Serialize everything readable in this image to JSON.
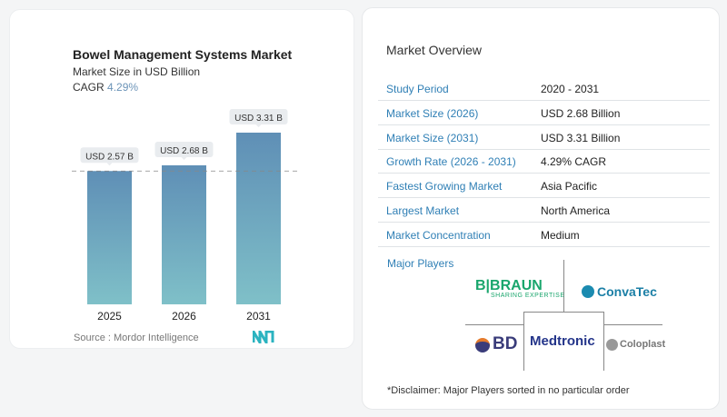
{
  "chart_data": {
    "type": "bar",
    "title": "Bowel Management Systems Market",
    "subtitle": "Market Size in USD Billion",
    "cagr_label": "CAGR",
    "cagr_value": "4.29%",
    "categories": [
      "2025",
      "2026",
      "2031"
    ],
    "values": [
      2.57,
      2.68,
      3.31
    ],
    "data_labels": [
      "USD 2.57 B",
      "USD 2.68 B",
      "USD 3.31 B"
    ],
    "ylim": [
      0,
      3.31
    ],
    "reference_line": 2.57,
    "bar_gradient": [
      "#5f8fb6",
      "#7fc0c8"
    ],
    "source": "Source :  Mordor Intelligence"
  },
  "overview": {
    "title": "Market Overview",
    "rows": [
      {
        "label": "Study Period",
        "value": "2020 - 2031"
      },
      {
        "label": "Market Size (2026)",
        "value": "USD 2.68 Billion"
      },
      {
        "label": "Market Size (2031)",
        "value": "USD 3.31 Billion"
      },
      {
        "label": "Growth Rate (2026 - 2031)",
        "value": "4.29% CAGR"
      },
      {
        "label": "Fastest Growing Market",
        "value": "Asia Pacific"
      },
      {
        "label": "Largest Market",
        "value": "North America"
      },
      {
        "label": "Market Concentration",
        "value": "Medium"
      }
    ]
  },
  "players": {
    "title": "Major Players",
    "logos": [
      "B|BRAUN",
      "SHARING EXPERTISE",
      "ConvaTec",
      "BD",
      "Medtronic",
      "Coloplast"
    ],
    "disclaimer": "*Disclaimer: Major Players sorted in no particular order"
  }
}
